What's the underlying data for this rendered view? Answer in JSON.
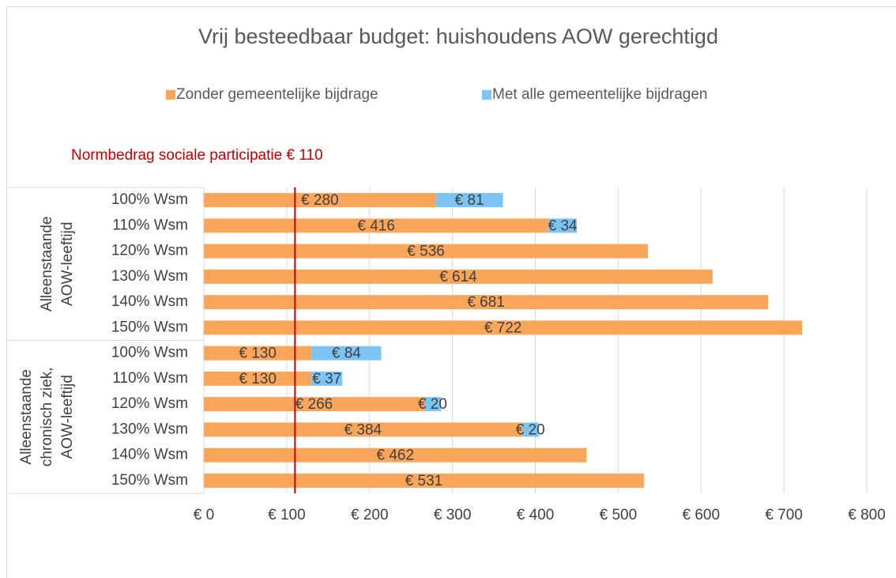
{
  "chart_data": {
    "type": "stacked-barh",
    "title": "Vrij besteedbaar budget: huishoudens AOW gerechtigd",
    "groups": [
      {
        "lines": [
          "Alleenstaande",
          "AOW-leeftijd"
        ],
        "categories": [
          "100% Wsm",
          "110% Wsm",
          "120% Wsm",
          "130% Wsm",
          "140% Wsm",
          "150% Wsm"
        ]
      },
      {
        "lines": [
          "Alleenstaande",
          "chronisch ziek,",
          "AOW-leeftijd"
        ],
        "categories": [
          "100% Wsm",
          "110% Wsm",
          "120% Wsm",
          "130% Wsm",
          "140% Wsm",
          "150% Wsm"
        ]
      }
    ],
    "series": [
      {
        "name": "Zonder gemeentelijke bijdrage",
        "color": "#f9a55a",
        "values": [
          280,
          416,
          536,
          614,
          681,
          722,
          130,
          130,
          266,
          384,
          462,
          531
        ],
        "value_labels": [
          "€ 280",
          "€ 416",
          "€ 536",
          "€ 614",
          "€ 681",
          "€ 722",
          "€ 130",
          "€ 130",
          "€ 266",
          "€ 384",
          "€ 462",
          "€ 531"
        ]
      },
      {
        "name": "Met alle gemeentelijke bijdragen",
        "color": "#7cc4f4",
        "values": [
          81,
          34,
          null,
          null,
          null,
          null,
          84,
          37,
          20,
          20,
          null,
          null
        ],
        "value_labels": [
          "€ 81",
          "€ 34",
          null,
          null,
          null,
          null,
          "€ 84",
          "€ 37",
          "€ 20",
          "€ 20",
          null,
          null
        ]
      }
    ],
    "reference_line": {
      "value": 110,
      "label": "Normbedrag sociale participatie € 110",
      "color": "#c00000"
    },
    "xlim": [
      0,
      800
    ],
    "xticks": [
      {
        "value": 0,
        "label": "€ 0"
      },
      {
        "value": 100,
        "label": "€ 100"
      },
      {
        "value": 200,
        "label": "€ 200"
      },
      {
        "value": 300,
        "label": "€ 300"
      },
      {
        "value": 400,
        "label": "€ 400"
      },
      {
        "value": 500,
        "label": "€ 500"
      },
      {
        "value": 600,
        "label": "€ 600"
      },
      {
        "value": 700,
        "label": "€ 700"
      },
      {
        "value": 800,
        "label": "€ 800"
      }
    ],
    "grid": true,
    "legend": "top"
  }
}
